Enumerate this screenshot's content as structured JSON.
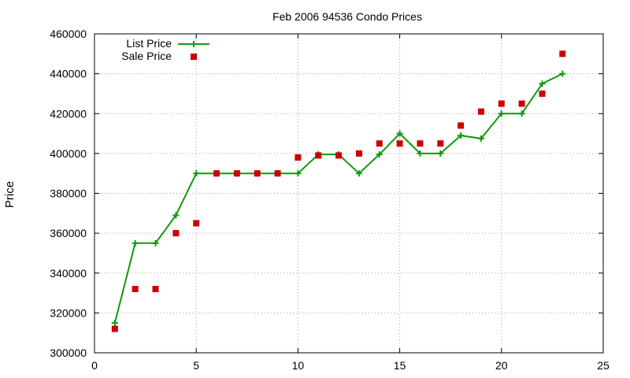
{
  "chart_data": {
    "type": "line",
    "title": "Feb 2006 94536 Condo Prices",
    "xlabel": "",
    "ylabel": "Price",
    "xlim": [
      0,
      25
    ],
    "ylim": [
      300000,
      460000
    ],
    "xticks": [
      0,
      5,
      10,
      15,
      20,
      25
    ],
    "yticks": [
      300000,
      320000,
      340000,
      360000,
      380000,
      400000,
      420000,
      440000,
      460000
    ],
    "grid": true,
    "legend_position": "top-left",
    "series": [
      {
        "name": "List Price",
        "style": "line-plus",
        "color": "#109a10",
        "x": [
          1,
          2,
          3,
          4,
          5,
          6,
          7,
          8,
          9,
          10,
          11,
          12,
          13,
          14,
          15,
          16,
          17,
          18,
          19,
          20,
          21,
          22,
          23
        ],
        "y": [
          315000,
          355000,
          355000,
          369000,
          390000,
          390000,
          390000,
          390000,
          390000,
          390000,
          399500,
          399500,
          390000,
          399500,
          410000,
          400000,
          400000,
          409000,
          407500,
          420000,
          420000,
          435000,
          440000
        ]
      },
      {
        "name": "Sale Price",
        "style": "square-marker",
        "color": "#cc0000",
        "x": [
          1,
          2,
          3,
          4,
          5,
          6,
          7,
          8,
          9,
          10,
          11,
          12,
          13,
          14,
          15,
          16,
          17,
          18,
          19,
          20,
          21,
          22,
          23
        ],
        "y": [
          312000,
          332000,
          332000,
          360000,
          365000,
          390000,
          390000,
          390000,
          390000,
          398000,
          399000,
          399000,
          400000,
          405000,
          405000,
          405000,
          405000,
          414000,
          421000,
          425000,
          425000,
          430000,
          450000
        ]
      }
    ]
  }
}
